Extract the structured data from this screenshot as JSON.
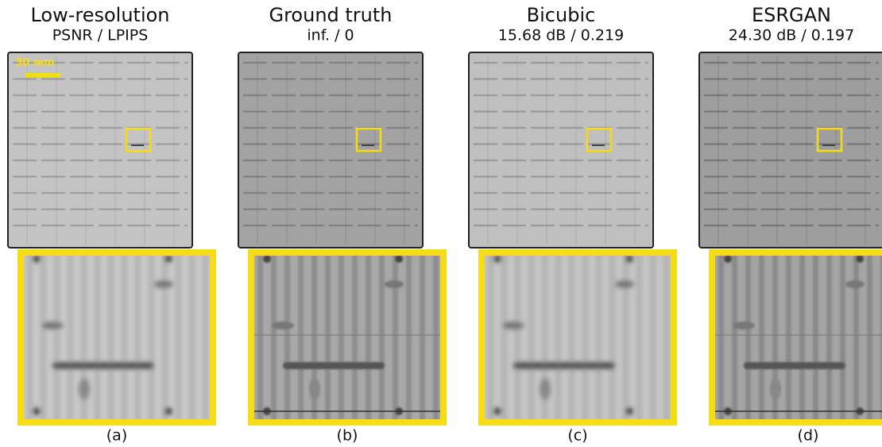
{
  "figure": {
    "scale_bar_label": "30 mm",
    "panels": [
      {
        "title": "Low-resolution",
        "metrics": "PSNR / LPIPS",
        "label": "(a)"
      },
      {
        "title": "Ground truth",
        "metrics": "inf. / 0",
        "label": "(b)"
      },
      {
        "title": "Bicubic",
        "metrics": "15.68 dB / 0.219",
        "label": "(c)"
      },
      {
        "title": "ESRGAN",
        "metrics": "24.30 dB / 0.197",
        "label": "(d)"
      }
    ]
  }
}
